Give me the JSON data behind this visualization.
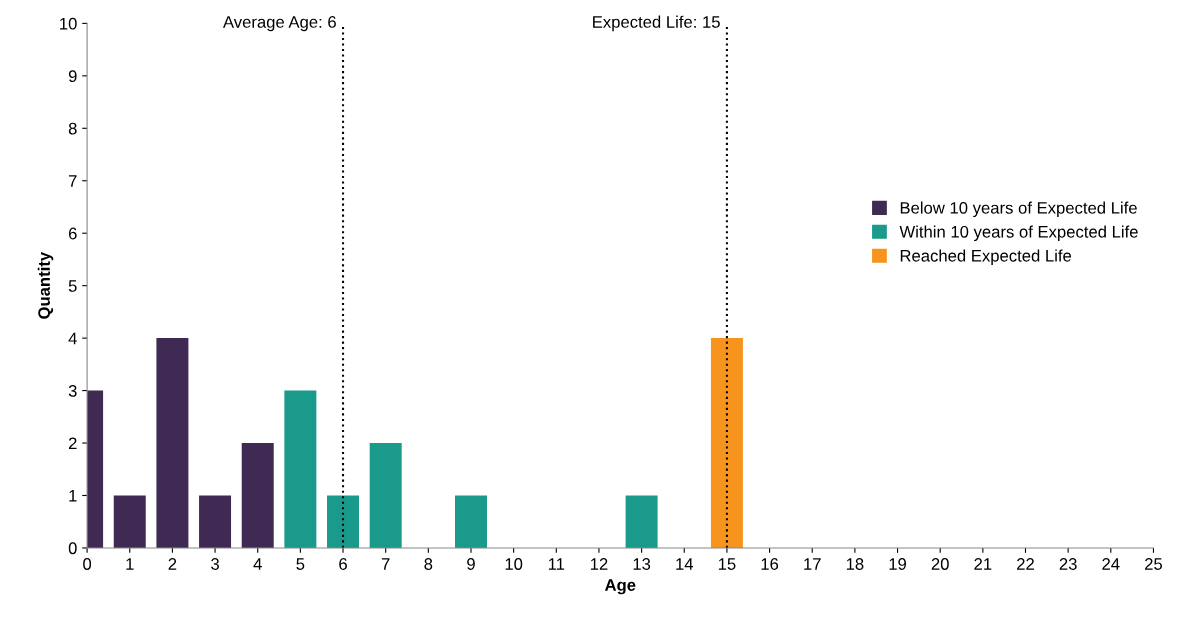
{
  "chart_data": {
    "type": "bar",
    "xlabel": "Age",
    "ylabel": "Quantity",
    "series": [
      {
        "name": "Below 10 years of Expected Life",
        "color": "#3f2a54",
        "x": [
          0,
          1,
          2,
          3,
          4
        ],
        "values": [
          3,
          1,
          4,
          1,
          2
        ]
      },
      {
        "name": "Within 10 years of Expected Life",
        "color": "#1a9a8a",
        "x": [
          5,
          6,
          7,
          9,
          13
        ],
        "values": [
          3,
          1,
          2,
          1,
          1
        ]
      },
      {
        "name": "Reached Expected Life",
        "color": "#f7941d",
        "x": [
          15
        ],
        "values": [
          4
        ]
      }
    ],
    "xlim": [
      0,
      25
    ],
    "xticks": [
      0,
      1,
      2,
      3,
      4,
      5,
      6,
      7,
      8,
      9,
      10,
      11,
      12,
      13,
      14,
      15,
      16,
      17,
      18,
      19,
      20,
      21,
      22,
      23,
      24,
      25
    ],
    "ylim": [
      0,
      10
    ],
    "yticks": [
      0,
      1,
      2,
      3,
      4,
      5,
      6,
      7,
      8,
      9,
      10
    ],
    "ref_lines": [
      {
        "axis": "x",
        "value": 6,
        "label": "Average Age: 6",
        "color": "#000000",
        "line_style": "dotted"
      },
      {
        "axis": "x",
        "value": 15,
        "label": "Expected Life: 15",
        "color": "#000000",
        "line_style": "dotted"
      }
    ],
    "grid": false,
    "legend": "right"
  }
}
